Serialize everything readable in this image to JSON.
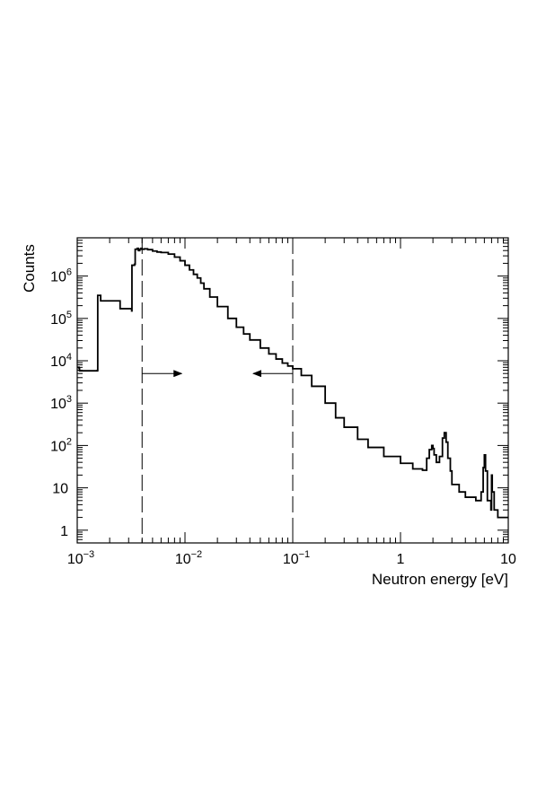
{
  "chart_data": {
    "type": "line",
    "title": "",
    "xlabel": "Neutron energy [eV]",
    "ylabel": "Counts",
    "x_scale": "log",
    "y_scale": "log",
    "xlim": [
      0.001,
      10
    ],
    "ylim": [
      0.5,
      8000000
    ],
    "grid": false,
    "legend": "none",
    "colors": {
      "line": "#000000",
      "axes": "#000000",
      "background": "#ffffff"
    },
    "x_tick_labels": [
      {
        "value": 0.001,
        "base": "10",
        "exp": "−3"
      },
      {
        "value": 0.01,
        "base": "10",
        "exp": "−2"
      },
      {
        "value": 0.1,
        "base": "10",
        "exp": "−1"
      },
      {
        "value": 1,
        "base": "1",
        "exp": ""
      },
      {
        "value": 10,
        "base": "10",
        "exp": ""
      }
    ],
    "y_tick_labels": [
      {
        "value": 1,
        "base": "1",
        "exp": ""
      },
      {
        "value": 10,
        "base": "10",
        "exp": ""
      },
      {
        "value": 100,
        "base": "10",
        "exp": "2"
      },
      {
        "value": 1000,
        "base": "10",
        "exp": "3"
      },
      {
        "value": 10000,
        "base": "10",
        "exp": "4"
      },
      {
        "value": 100000,
        "base": "10",
        "exp": "5"
      },
      {
        "value": 1000000,
        "base": "10",
        "exp": "6"
      }
    ],
    "vertical_markers": [
      {
        "x": 0.004,
        "style": "dashed",
        "arrow_direction": "right",
        "arrow_y": 5000
      },
      {
        "x": 0.1,
        "style": "dashed",
        "arrow_direction": "left",
        "arrow_y": 5000
      }
    ],
    "series": [
      {
        "x": [
          0.001,
          0.00104,
          0.00105,
          0.00154,
          0.00155,
          0.00162,
          0.00165,
          0.0025,
          0.0032,
          0.00322,
          0.0034,
          0.00345,
          0.0036,
          0.0037,
          0.0038,
          0.0039,
          0.004,
          0.0042,
          0.0045,
          0.005,
          0.0055,
          0.006,
          0.007,
          0.008,
          0.009,
          0.01,
          0.011,
          0.012,
          0.013,
          0.014,
          0.015,
          0.017,
          0.02,
          0.025,
          0.03,
          0.035,
          0.04,
          0.05,
          0.06,
          0.07,
          0.08,
          0.09,
          0.1,
          0.12,
          0.15,
          0.2,
          0.25,
          0.3,
          0.4,
          0.5,
          0.7,
          1.0,
          1.3,
          1.6,
          1.75,
          1.85,
          1.95,
          2.0,
          2.05,
          2.15,
          2.3,
          2.45,
          2.55,
          2.65,
          2.75,
          2.9,
          3.0,
          3.5,
          4.0,
          5.0,
          5.6,
          5.85,
          6.0,
          6.15,
          6.4,
          6.9,
          7.0,
          7.1,
          7.4,
          8.0,
          9.0,
          10.0
        ],
        "y": [
          7000,
          6800,
          5800,
          5900,
          350000,
          350000,
          260000,
          170000,
          150000,
          1800000,
          1900000,
          4300000,
          4500000,
          4000000,
          4300000,
          4500000,
          4300000,
          4400000,
          4200000,
          3900000,
          3700000,
          3600000,
          3300000,
          2800000,
          2300000,
          1800000,
          1400000,
          1100000,
          900000,
          680000,
          500000,
          320000,
          190000,
          100000,
          62000,
          43000,
          31000,
          20000,
          14500,
          11000,
          8800,
          7500,
          6500,
          4500,
          2500,
          1000,
          450,
          270,
          140,
          90,
          55,
          38,
          28,
          26,
          50,
          80,
          100,
          85,
          60,
          40,
          55,
          150,
          200,
          120,
          50,
          25,
          12,
          8,
          6,
          5,
          8,
          30,
          60,
          25,
          5,
          3,
          20,
          8,
          3,
          2,
          2,
          2
        ]
      }
    ]
  }
}
